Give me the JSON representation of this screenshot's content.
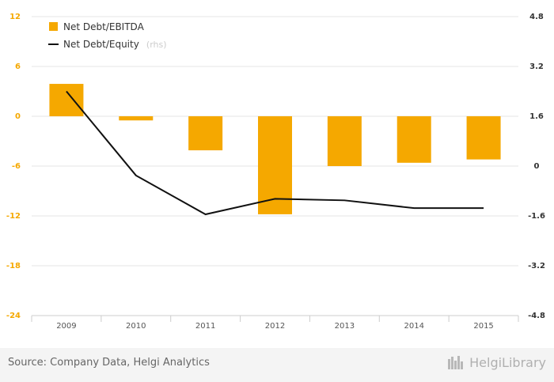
{
  "chart_data": {
    "type": "bar",
    "categories": [
      "2009",
      "2010",
      "2011",
      "2012",
      "2013",
      "2014",
      "2015"
    ],
    "series": [
      {
        "name": "Net Debt/EBITDA",
        "kind": "bar",
        "axis": "left",
        "color": "#f5a800",
        "values": [
          3.9,
          -0.5,
          -4.1,
          -11.8,
          -6.0,
          -5.6,
          -5.2
        ]
      },
      {
        "name": "Net Debt/Equity",
        "legend_suffix": "(rhs)",
        "kind": "line",
        "axis": "right",
        "color": "#111111",
        "values": [
          2.4,
          -0.3,
          -1.55,
          -1.05,
          -1.1,
          -1.35,
          -1.35
        ]
      }
    ],
    "y_left": {
      "min": -24,
      "max": 12,
      "ticks": [
        "12",
        "6",
        "0",
        "-6",
        "-12",
        "-18",
        "-24"
      ]
    },
    "y_right": {
      "min": -4.8,
      "max": 4.8,
      "ticks": [
        "4.8",
        "3.2",
        "1.6",
        "0",
        "-1.6",
        "-3.2",
        "-4.8"
      ]
    },
    "grid": true,
    "legend_position": "top-left"
  },
  "footer": {
    "source": "Source: Company Data, Helgi Analytics",
    "brand": "HelgiLibrary"
  }
}
